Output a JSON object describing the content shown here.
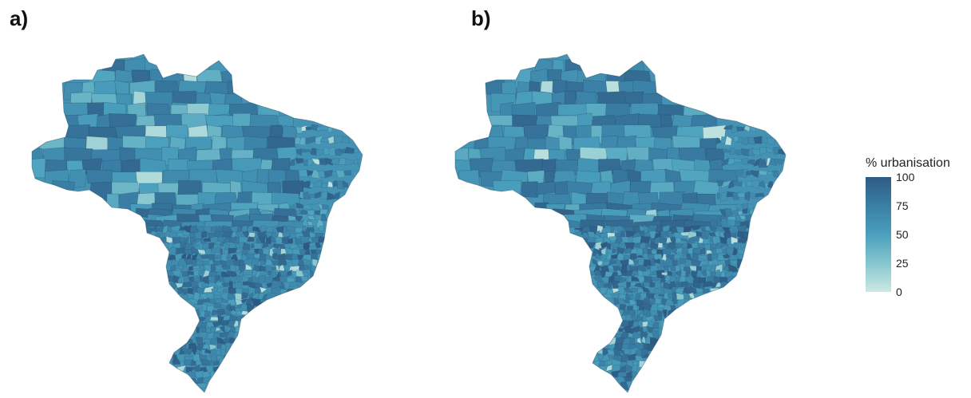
{
  "panels": [
    {
      "label": "a)"
    },
    {
      "label": "b)"
    }
  ],
  "legend": {
    "title": "% urbanisation",
    "ticks": [
      "100",
      "75",
      "50",
      "25",
      "0"
    ],
    "range": [
      0,
      100
    ],
    "colors": [
      "#cde9e4",
      "#86c6cf",
      "#4aa0bd",
      "#3a7fa6",
      "#2e5a82"
    ]
  }
}
